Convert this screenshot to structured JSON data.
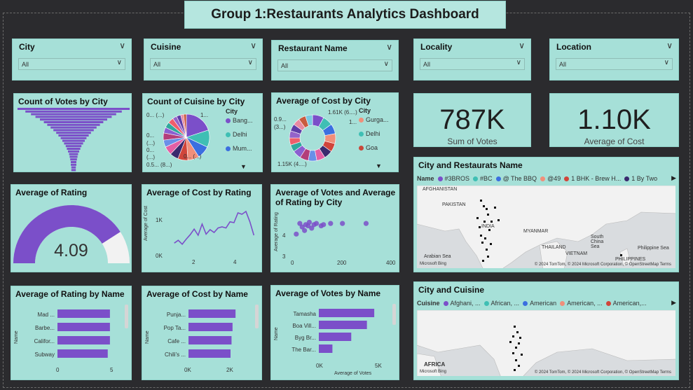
{
  "title": "Group 1:Restaurants Analytics Dashboard",
  "slicers": [
    {
      "label": "City",
      "value": "All"
    },
    {
      "label": "Cuisine",
      "value": "All"
    },
    {
      "label": "Restaurant Name",
      "value": "All"
    },
    {
      "label": "Locality",
      "value": "All"
    },
    {
      "label": "Location",
      "value": "All"
    }
  ],
  "kpis": {
    "votes": {
      "value": "787K",
      "label": "Sum of Votes"
    },
    "cost": {
      "value": "1.10K",
      "label": "Average of Cost"
    }
  },
  "votes_by_city": {
    "title": "Count of Votes by City"
  },
  "cuisine_by_city": {
    "title": "Count of Cuisine by City",
    "legend_title": "City",
    "legend": [
      "Bang...",
      "Delhi",
      "Mum..."
    ],
    "labels": [
      "0... (...)",
      "1...",
      "0...",
      "(...)",
      "0...",
      "(...)",
      "0.5... (8...)",
      "0... (...)"
    ]
  },
  "cost_by_city": {
    "title": "Average of Cost by City",
    "legend_title": "City",
    "legend": [
      "Gurga...",
      "Delhi",
      "Goa"
    ],
    "labels": [
      "1.61K (6....)",
      "0.9...",
      "(3...)",
      "1...",
      "1.15K (4....)"
    ]
  },
  "rating_gauge": {
    "title": "Average of Rating",
    "value": "4.09"
  },
  "cost_by_rating": {
    "title": "Average of Cost by Rating",
    "ylabel": "Average of Cost",
    "yticks": [
      "1K",
      "0K"
    ],
    "xticks": [
      "2",
      "4"
    ]
  },
  "votes_rating_city": {
    "title": "Average of Votes and Average of Rating by City",
    "ylabel": "Average of Rating",
    "yticks": [
      "4",
      "3"
    ],
    "xticks": [
      "0",
      "200",
      "400"
    ]
  },
  "map1": {
    "title": "City and Restaurats Name",
    "legend_title": "Name",
    "legend": [
      "#3BROS",
      "#BC",
      "@ The BBQ",
      "@49",
      "1 BHK - Brew H...",
      "1 By Two"
    ],
    "places": [
      "AFGHANISTAN",
      "PAKISTAN",
      "INDIA",
      "MYANMAR",
      "THAILAND",
      "VIETNAM",
      "South China Sea",
      "PHILIPPINES",
      "Philippine Sea",
      "Arabian Sea"
    ],
    "footer": "© 2024 TomTom, © 2024 Microsoft Corporation, © OpenStreetMap  Terms",
    "bing": "Microsoft Bing"
  },
  "map2": {
    "title": "City and Cuisine",
    "legend_title": "Cuisine",
    "legend": [
      "Afghani, ...",
      "African, ...",
      "American",
      "American, ...",
      "American,..."
    ],
    "places": [
      "AFRICA"
    ],
    "footer": "© 2024 TomTom, © 2024 Microsoft Corporation, © OpenStreetMap  Terms",
    "bing": "Microsoft Bing"
  },
  "rating_by_name": {
    "title": "Average of Rating by Name",
    "ylabel": "Name",
    "xticks": [
      "0",
      "5"
    ]
  },
  "cost_by_name": {
    "title": "Average of Cost by Name",
    "ylabel": "Name",
    "xticks": [
      "0K",
      "2K"
    ]
  },
  "votes_by_name": {
    "title": "Average of Votes by Name",
    "ylabel": "Name",
    "xlabel": "Average of Votes",
    "xticks": [
      "0K",
      "5K"
    ]
  },
  "colors": {
    "accent": "#7b4fc9",
    "card": "#a6e0d8",
    "background": "#2b2b2e"
  },
  "chart_data": [
    {
      "type": "bar",
      "title": "Average of Rating by Name",
      "categories": [
        "Mad ...",
        "Barbe...",
        "Califor...",
        "Subway"
      ],
      "values": [
        4.8,
        4.8,
        4.8,
        4.6
      ],
      "xlim": [
        0,
        5
      ]
    },
    {
      "type": "bar",
      "title": "Average of Cost by Name",
      "categories": [
        "Punja...",
        "Pop Ta...",
        "Cafe ...",
        "Chili's ..."
      ],
      "values": [
        2350,
        2200,
        2150,
        2100
      ],
      "xlim": [
        0,
        2800
      ]
    },
    {
      "type": "bar",
      "title": "Average of Votes by Name",
      "categories": [
        "Tamasha",
        "Boa Vill...",
        "Byg Br...",
        "The Bar..."
      ],
      "values": [
        5300,
        4600,
        3100,
        1300
      ],
      "xlim": [
        0,
        6500
      ]
    },
    {
      "type": "line",
      "title": "Average of Cost by Rating",
      "x": [
        1.0,
        1.2,
        1.4,
        1.6,
        1.8,
        2.0,
        2.2,
        2.4,
        2.6,
        2.8,
        3.0,
        3.2,
        3.4,
        3.6,
        3.8,
        4.0,
        4.2,
        4.4,
        4.6,
        4.8,
        5.0
      ],
      "values": [
        420,
        520,
        380,
        560,
        720,
        920,
        700,
        1100,
        740,
        900,
        800,
        960,
        1000,
        960,
        1180,
        1150,
        1500,
        1450,
        1550,
        1180,
        700
      ],
      "xlim": [
        0.8,
        5.2
      ],
      "ylim": [
        0,
        1800
      ]
    },
    {
      "type": "scatter",
      "title": "Average of Votes and Average of Rating by City",
      "x": [
        20,
        30,
        45,
        55,
        60,
        70,
        80,
        90,
        110,
        120,
        150,
        200,
        300,
        5,
        40
      ],
      "values": [
        4.45,
        4.3,
        4.4,
        4.35,
        4.5,
        4.25,
        4.4,
        4.45,
        4.35,
        4.4,
        4.45,
        4.45,
        4.45,
        4.0,
        4.15
      ],
      "xlim": [
        -30,
        420
      ],
      "ylim": [
        3,
        4.9
      ]
    },
    {
      "type": "bar",
      "title": "Count of Votes by City",
      "values": [
        100,
        86,
        76,
        68,
        60,
        53,
        47,
        41,
        36,
        31,
        27,
        23,
        20,
        17,
        14,
        12,
        10,
        8,
        7,
        6,
        5,
        5,
        4,
        4
      ]
    },
    {
      "type": "pie",
      "title": "Count of Cuisine by City",
      "values": [
        20,
        12,
        9,
        8,
        7,
        6,
        6,
        5,
        5,
        4,
        4,
        4,
        3,
        3,
        2,
        2
      ]
    },
    {
      "type": "pie",
      "title": "Average of Cost by City",
      "values": [
        8,
        7,
        7,
        7,
        6,
        6,
        6,
        6,
        6,
        6,
        5,
        5,
        5,
        5,
        5,
        5,
        5
      ]
    },
    {
      "type": "pie",
      "title": "Average of Rating",
      "values": [
        4.09
      ],
      "ylim": [
        0,
        5
      ]
    }
  ]
}
